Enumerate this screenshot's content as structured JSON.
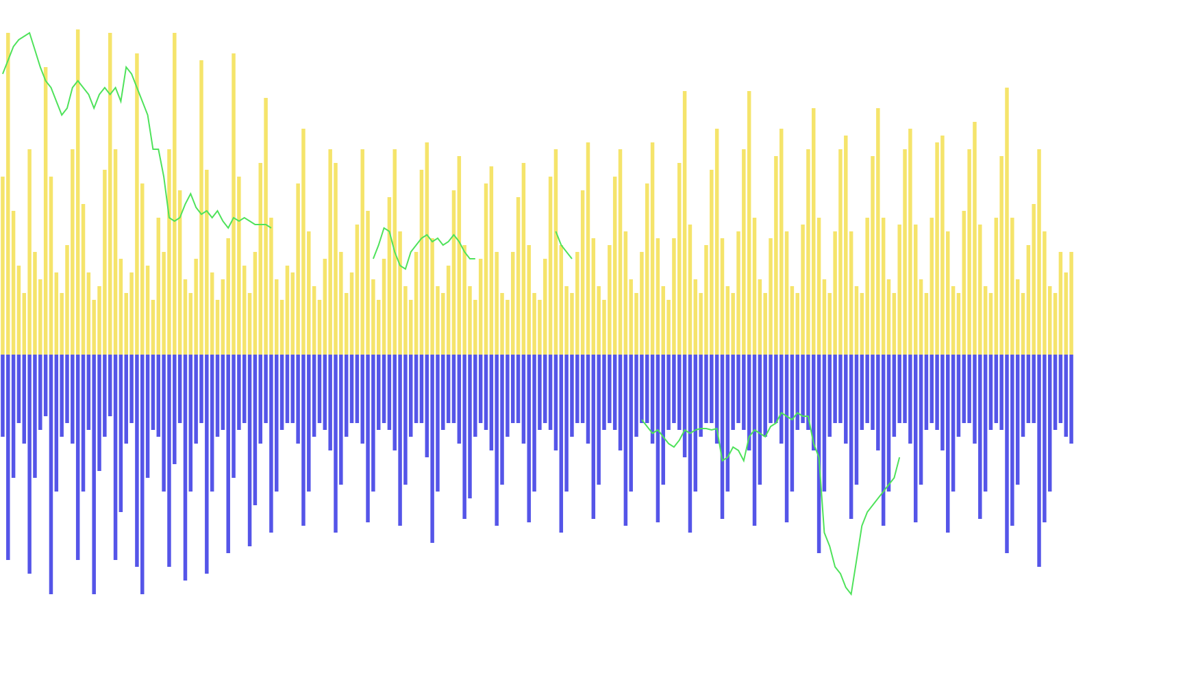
{
  "chart_data": {
    "type": "bar",
    "ylim": [
      -487,
      518
    ],
    "series": [
      {
        "color": "#f5e46b",
        "values": [
          260,
          470,
          210,
          130,
          90,
          300,
          150,
          110,
          420,
          260,
          120,
          90,
          160,
          300,
          475,
          220,
          120,
          80,
          100,
          270,
          470,
          300,
          140,
          90,
          120,
          440,
          250,
          130,
          80,
          200,
          150,
          300,
          470,
          240,
          110,
          90,
          140,
          430,
          270,
          120,
          80,
          110,
          170,
          440,
          260,
          130,
          90,
          150,
          280,
          375,
          200,
          110,
          80,
          130,
          120,
          250,
          330,
          180,
          100,
          80,
          140,
          300,
          280,
          150,
          90,
          120,
          190,
          300,
          210,
          110,
          80,
          140,
          230,
          300,
          180,
          100,
          80,
          150,
          270,
          310,
          170,
          100,
          90,
          130,
          240,
          290,
          160,
          100,
          80,
          140,
          250,
          275,
          150,
          90,
          80,
          150,
          230,
          280,
          160,
          90,
          80,
          140,
          260,
          300,
          160,
          100,
          90,
          150,
          240,
          310,
          170,
          100,
          80,
          160,
          260,
          300,
          180,
          110,
          90,
          150,
          250,
          310,
          170,
          100,
          80,
          170,
          280,
          385,
          190,
          110,
          90,
          160,
          270,
          330,
          170,
          100,
          90,
          180,
          300,
          385,
          200,
          110,
          90,
          170,
          290,
          330,
          180,
          100,
          90,
          190,
          300,
          360,
          200,
          110,
          90,
          180,
          300,
          320,
          180,
          100,
          90,
          200,
          290,
          360,
          200,
          110,
          90,
          190,
          300,
          330,
          190,
          110,
          90,
          200,
          310,
          320,
          180,
          100,
          90,
          210,
          300,
          340,
          190,
          100,
          90,
          200,
          290,
          390,
          200,
          110,
          90,
          160,
          220,
          300,
          180,
          100,
          90,
          150,
          120,
          150
        ]
      },
      {
        "color": "#5555e8",
        "values": [
          -120,
          -300,
          -180,
          -100,
          -130,
          -320,
          -180,
          -110,
          -90,
          -350,
          -200,
          -120,
          -100,
          -130,
          -300,
          -200,
          -110,
          -350,
          -170,
          -120,
          -90,
          -300,
          -230,
          -130,
          -100,
          -310,
          -350,
          -180,
          -110,
          -120,
          -200,
          -310,
          -160,
          -100,
          -330,
          -200,
          -130,
          -100,
          -320,
          -200,
          -120,
          -110,
          -290,
          -180,
          -110,
          -100,
          -280,
          -220,
          -130,
          -100,
          -260,
          -200,
          -110,
          -100,
          -100,
          -130,
          -250,
          -200,
          -120,
          -100,
          -110,
          -140,
          -260,
          -190,
          -120,
          -100,
          -100,
          -130,
          -245,
          -200,
          -110,
          -100,
          -110,
          -140,
          -250,
          -190,
          -120,
          -100,
          -100,
          -150,
          -275,
          -200,
          -110,
          -100,
          -100,
          -130,
          -240,
          -210,
          -120,
          -100,
          -110,
          -140,
          -250,
          -190,
          -120,
          -100,
          -100,
          -130,
          -245,
          -200,
          -110,
          -100,
          -110,
          -140,
          -260,
          -200,
          -120,
          -100,
          -100,
          -130,
          -240,
          -190,
          -110,
          -100,
          -110,
          -140,
          -250,
          -200,
          -120,
          -100,
          -100,
          -130,
          -245,
          -190,
          -110,
          -100,
          -110,
          -150,
          -260,
          -200,
          -120,
          -100,
          -100,
          -130,
          -240,
          -200,
          -110,
          -100,
          -110,
          -140,
          -250,
          -190,
          -120,
          -100,
          -100,
          -130,
          -245,
          -200,
          -110,
          -100,
          -110,
          -140,
          -290,
          -200,
          -120,
          -100,
          -100,
          -130,
          -240,
          -190,
          -110,
          -100,
          -110,
          -140,
          -250,
          -200,
          -120,
          -100,
          -100,
          -130,
          -245,
          -190,
          -110,
          -100,
          -110,
          -140,
          -260,
          -200,
          -120,
          -100,
          -100,
          -130,
          -240,
          -200,
          -110,
          -100,
          -110,
          -290,
          -250,
          -190,
          -120,
          -100,
          -100,
          -310,
          -245,
          -200,
          -110,
          -100,
          -120,
          -130
        ]
      },
      {
        "type": "line",
        "color": "#4ee25a",
        "values": [
          410,
          430,
          450,
          460,
          465,
          470,
          445,
          420,
          400,
          390,
          370,
          350,
          360,
          390,
          400,
          390,
          380,
          360,
          380,
          390,
          380,
          390,
          370,
          420,
          410,
          390,
          370,
          350,
          300,
          300,
          260,
          200,
          195,
          200,
          220,
          235,
          215,
          205,
          210,
          200,
          210,
          195,
          185,
          200,
          195,
          200,
          195,
          190,
          190,
          190,
          185,
          null,
          null,
          null,
          null,
          null,
          null,
          null,
          null,
          null,
          null,
          null,
          null,
          null,
          null,
          null,
          null,
          null,
          null,
          140,
          160,
          185,
          180,
          150,
          130,
          125,
          150,
          160,
          170,
          175,
          165,
          170,
          160,
          165,
          175,
          165,
          150,
          140,
          140,
          null,
          null,
          null,
          null,
          null,
          null,
          null,
          null,
          null,
          null,
          null,
          null,
          null,
          null,
          180,
          160,
          150,
          140,
          null,
          null,
          null,
          null,
          null,
          null,
          null,
          null,
          null,
          null,
          null,
          null,
          -95,
          -105,
          -115,
          -110,
          -120,
          -130,
          -135,
          -125,
          -110,
          -115,
          -110,
          -108,
          -108,
          -110,
          -108,
          -155,
          -150,
          -135,
          -140,
          -155,
          -120,
          -110,
          -115,
          -120,
          -105,
          -100,
          -85,
          -90,
          -95,
          -85,
          -90,
          -90,
          -130,
          -150,
          -260,
          -280,
          -310,
          -320,
          -340,
          -350,
          -300,
          -250,
          -230,
          -220,
          -210,
          -200,
          -190,
          -180,
          -150,
          null,
          null,
          null,
          null,
          null,
          null,
          null,
          null,
          null,
          null,
          null,
          null,
          null,
          null,
          null,
          null,
          null,
          null,
          null,
          null,
          null,
          null,
          null,
          null,
          null,
          null,
          null,
          null,
          null,
          null,
          null,
          null
        ]
      }
    ]
  }
}
